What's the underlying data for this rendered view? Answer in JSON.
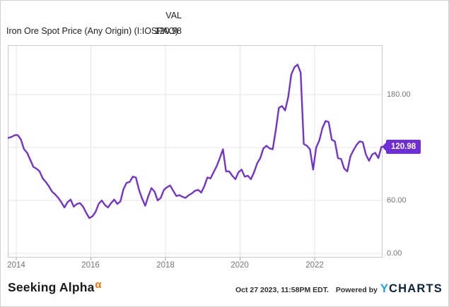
{
  "header": {
    "value_column_label": "VAL",
    "series_label": "Iron Ore Spot Price (Any Origin) (I:IOSPAO)",
    "series_value": "120.98"
  },
  "badge": {
    "text": "120.98"
  },
  "axes": {
    "y_tick_labels": [
      "180.00",
      "60.00",
      "0.00"
    ],
    "x_tick_labels": [
      "2014",
      "2016",
      "2018",
      "2020",
      "2022"
    ]
  },
  "footer": {
    "brand": "Seeking Alpha",
    "brand_alpha": "α",
    "timestamp": "Oct 27 2023, 11:58PM EDT.",
    "powered_by": "Powered by",
    "ycharts_y": "Y",
    "ycharts_rest": "CHARTS"
  },
  "colors": {
    "line": "#7134cf",
    "badge_accent": "#6e2ed6",
    "gridline": "#e4e4e4",
    "plot_border": "#c9c9c9",
    "axis_text": "#757575",
    "alpha_orange": "#ff6a00",
    "ycharts_blue": "#18a0f2",
    "ycharts_navy": "#0c2340"
  },
  "chart_data": {
    "type": "line",
    "title": "Iron Ore Spot Price (Any Origin) (I:IOSPAO)",
    "series": [
      {
        "name": "Iron Ore Spot Price (Any Origin) (I:IOSPAO)",
        "latest_value": 120.98
      }
    ],
    "xlabel": "",
    "ylabel": "",
    "x_tick_years": [
      2014,
      2016,
      2018,
      2020,
      2022
    ],
    "y_gridline_values": [
      180,
      120,
      60,
      0
    ],
    "y_tick_labels_visible": [
      "180.00",
      "60.00",
      "0.00"
    ],
    "y_tick_label_hidden_behind_badge": "120.00",
    "ylim": [
      -4.8,
      236
    ],
    "xlim_years": [
      2013.77,
      2023.82
    ],
    "grid": true,
    "legend_position": "none",
    "points": [
      [
        "2013-10",
        131
      ],
      [
        "2013-11",
        132
      ],
      [
        "2013-12",
        134
      ],
      [
        "2014-01",
        134
      ],
      [
        "2014-02",
        129
      ],
      [
        "2014-03",
        118
      ],
      [
        "2014-04",
        114
      ],
      [
        "2014-05",
        106
      ],
      [
        "2014-06",
        98
      ],
      [
        "2014-07",
        96
      ],
      [
        "2014-08",
        93
      ],
      [
        "2014-09",
        85
      ],
      [
        "2014-10",
        81
      ],
      [
        "2014-11",
        76
      ],
      [
        "2014-12",
        70
      ],
      [
        "2015-01",
        67
      ],
      [
        "2015-02",
        63
      ],
      [
        "2015-03",
        58
      ],
      [
        "2015-04",
        52
      ],
      [
        "2015-05",
        58
      ],
      [
        "2015-06",
        61
      ],
      [
        "2015-07",
        53
      ],
      [
        "2015-08",
        56
      ],
      [
        "2015-09",
        57
      ],
      [
        "2015-10",
        53
      ],
      [
        "2015-11",
        46
      ],
      [
        "2015-12",
        40
      ],
      [
        "2016-01",
        42
      ],
      [
        "2016-02",
        47
      ],
      [
        "2016-03",
        56
      ],
      [
        "2016-04",
        60
      ],
      [
        "2016-05",
        55
      ],
      [
        "2016-06",
        52
      ],
      [
        "2016-07",
        57
      ],
      [
        "2016-08",
        61
      ],
      [
        "2016-09",
        56
      ],
      [
        "2016-10",
        59
      ],
      [
        "2016-11",
        73
      ],
      [
        "2016-12",
        80
      ],
      [
        "2017-01",
        81
      ],
      [
        "2017-02",
        87
      ],
      [
        "2017-03",
        86
      ],
      [
        "2017-04",
        72
      ],
      [
        "2017-05",
        62
      ],
      [
        "2017-06",
        54
      ],
      [
        "2017-07",
        65
      ],
      [
        "2017-08",
        74
      ],
      [
        "2017-09",
        70
      ],
      [
        "2017-10",
        60
      ],
      [
        "2017-11",
        63
      ],
      [
        "2017-12",
        72
      ],
      [
        "2018-01",
        75
      ],
      [
        "2018-02",
        77
      ],
      [
        "2018-03",
        71
      ],
      [
        "2018-04",
        65
      ],
      [
        "2018-05",
        66
      ],
      [
        "2018-06",
        64
      ],
      [
        "2018-07",
        63
      ],
      [
        "2018-08",
        66
      ],
      [
        "2018-09",
        68
      ],
      [
        "2018-10",
        71
      ],
      [
        "2018-11",
        72
      ],
      [
        "2018-12",
        69
      ],
      [
        "2019-01",
        76
      ],
      [
        "2019-02",
        86
      ],
      [
        "2019-03",
        85
      ],
      [
        "2019-04",
        92
      ],
      [
        "2019-05",
        99
      ],
      [
        "2019-06",
        108
      ],
      [
        "2019-07",
        118
      ],
      [
        "2019-08",
        93
      ],
      [
        "2019-09",
        93
      ],
      [
        "2019-10",
        88
      ],
      [
        "2019-11",
        84
      ],
      [
        "2019-12",
        92
      ],
      [
        "2020-01",
        95
      ],
      [
        "2020-02",
        87
      ],
      [
        "2020-03",
        88
      ],
      [
        "2020-04",
        84
      ],
      [
        "2020-05",
        92
      ],
      [
        "2020-06",
        102
      ],
      [
        "2020-07",
        108
      ],
      [
        "2020-08",
        119
      ],
      [
        "2020-09",
        122
      ],
      [
        "2020-10",
        119
      ],
      [
        "2020-11",
        118
      ],
      [
        "2020-12",
        140
      ],
      [
        "2021-01",
        165
      ],
      [
        "2021-02",
        167
      ],
      [
        "2021-03",
        162
      ],
      [
        "2021-04",
        177
      ],
      [
        "2021-05",
        203
      ],
      [
        "2021-06",
        211
      ],
      [
        "2021-07",
        214
      ],
      [
        "2021-08",
        205
      ],
      [
        "2021-09",
        124
      ],
      [
        "2021-10",
        122
      ],
      [
        "2021-11",
        118
      ],
      [
        "2021-12",
        95
      ],
      [
        "2022-01",
        120
      ],
      [
        "2022-02",
        128
      ],
      [
        "2022-03",
        142
      ],
      [
        "2022-04",
        150
      ],
      [
        "2022-05",
        149
      ],
      [
        "2022-06",
        129
      ],
      [
        "2022-07",
        127
      ],
      [
        "2022-08",
        108
      ],
      [
        "2022-09",
        107
      ],
      [
        "2022-10",
        96
      ],
      [
        "2022-11",
        93
      ],
      [
        "2022-12",
        110
      ],
      [
        "2023-01",
        117
      ],
      [
        "2023-02",
        123
      ],
      [
        "2023-03",
        127
      ],
      [
        "2023-04",
        126
      ],
      [
        "2023-05",
        112
      ],
      [
        "2023-06",
        105
      ],
      [
        "2023-07",
        112
      ],
      [
        "2023-08",
        114
      ],
      [
        "2023-09",
        108
      ],
      [
        "2023-10",
        120.98
      ]
    ]
  }
}
